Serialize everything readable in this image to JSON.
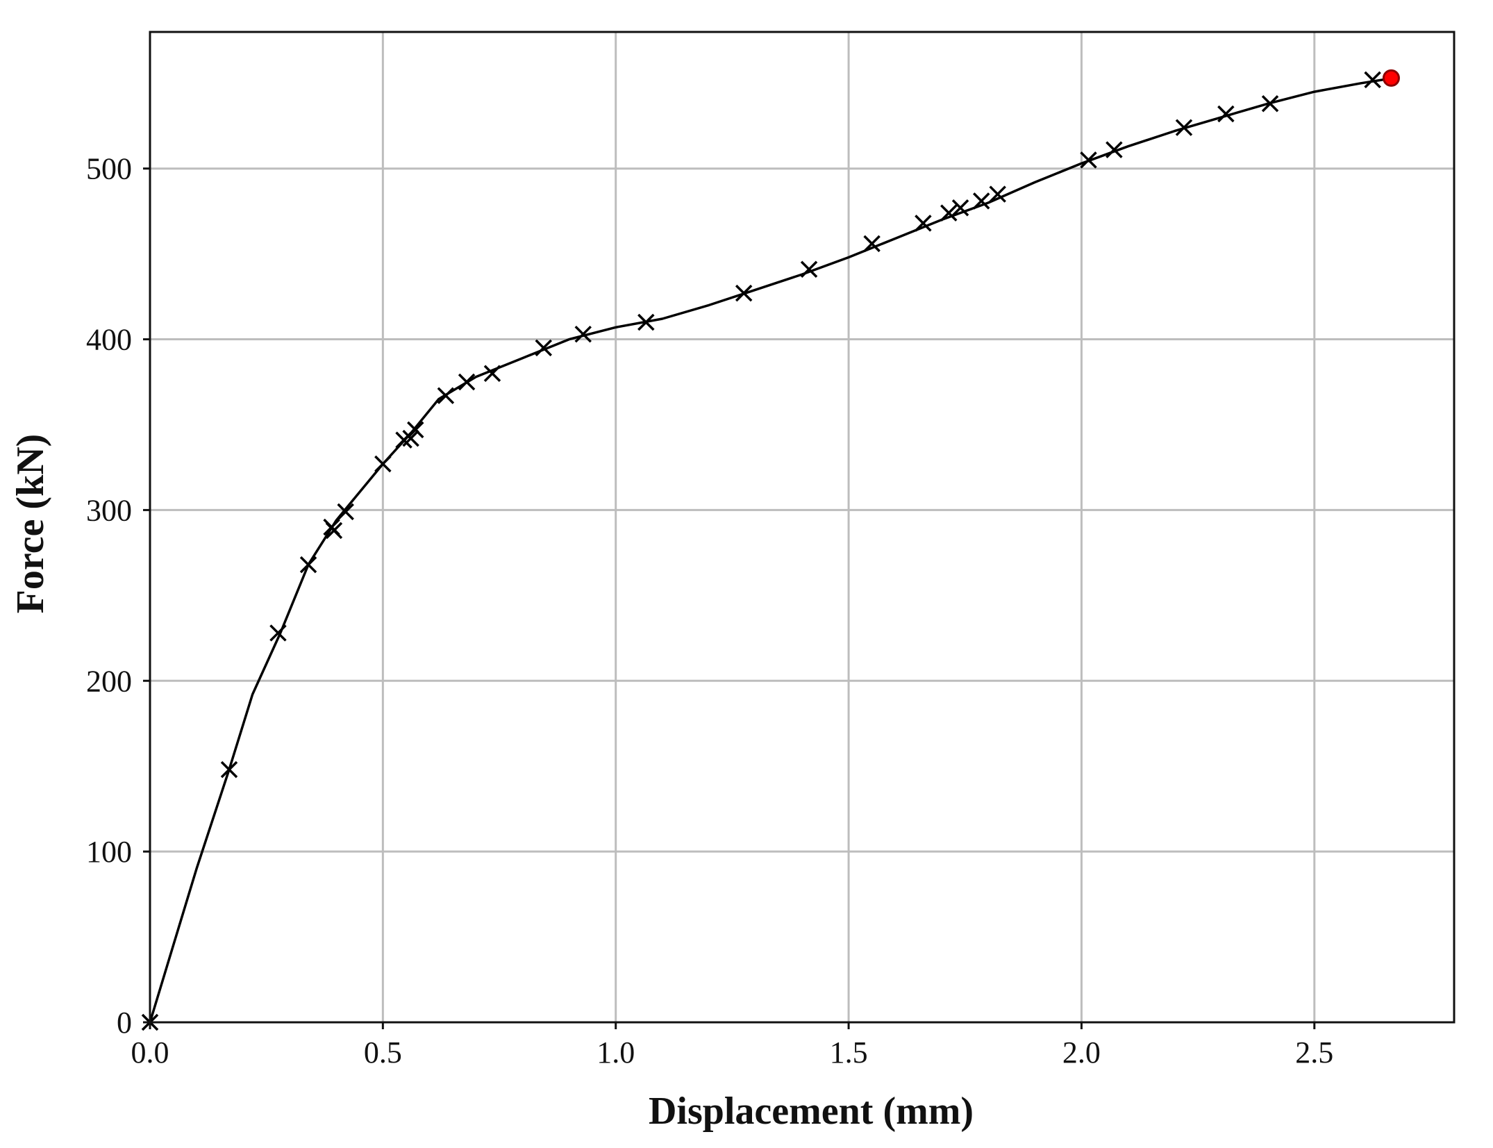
{
  "chart_data": {
    "type": "line",
    "title": "",
    "xlabel": "Displacement (mm)",
    "ylabel": "Force (kN)",
    "xlim": [
      0.0,
      2.8
    ],
    "ylim": [
      0,
      580
    ],
    "xticks": [
      0.0,
      0.5,
      1.0,
      1.5,
      2.0,
      2.5
    ],
    "xtick_labels": [
      "0.0",
      "0.5",
      "1.0",
      "1.5",
      "2.0",
      "2.5"
    ],
    "yticks": [
      0,
      100,
      200,
      300,
      400,
      500
    ],
    "ytick_labels": [
      "0",
      "100",
      "200",
      "300",
      "400",
      "500"
    ],
    "grid": true,
    "legend": "none",
    "series": [
      {
        "line_color": "#000000",
        "curve": {
          "x": [
            0.0,
            0.05,
            0.1,
            0.17,
            0.22,
            0.28,
            0.34,
            0.4,
            0.5,
            0.56,
            0.62,
            0.7,
            0.8,
            0.9,
            1.0,
            1.1,
            1.2,
            1.3,
            1.4,
            1.5,
            1.6,
            1.7,
            1.8,
            1.9,
            2.0,
            2.1,
            2.2,
            2.3,
            2.4,
            2.5,
            2.6,
            2.67
          ],
          "y": [
            0,
            45,
            90,
            148,
            192,
            228,
            268,
            294,
            327,
            345,
            365,
            378,
            389,
            400,
            407,
            412,
            420,
            429,
            438,
            448,
            459,
            470,
            480,
            492,
            503,
            513,
            522,
            530,
            538,
            545,
            550,
            553
          ]
        },
        "markers": {
          "symbol": "x",
          "color": "#000000",
          "x": [
            0.0,
            0.17,
            0.275,
            0.34,
            0.39,
            0.395,
            0.42,
            0.5,
            0.545,
            0.56,
            0.57,
            0.635,
            0.68,
            0.735,
            0.845,
            0.93,
            1.065,
            1.275,
            1.415,
            1.55,
            1.66,
            1.715,
            1.74,
            1.785,
            1.82,
            2.015,
            2.07,
            2.22,
            2.31,
            2.405,
            2.625
          ],
          "y": [
            0,
            148,
            228,
            268,
            290,
            288,
            299,
            327,
            341,
            342,
            347,
            367,
            375,
            380,
            395,
            403,
            410,
            427,
            441,
            456,
            468,
            474,
            477,
            481,
            485,
            505,
            511,
            524,
            532,
            538,
            552
          ]
        },
        "endpoint": {
          "x": 2.665,
          "y": 553,
          "fill": "#ff0000",
          "edge": "#8b0000"
        }
      }
    ]
  }
}
